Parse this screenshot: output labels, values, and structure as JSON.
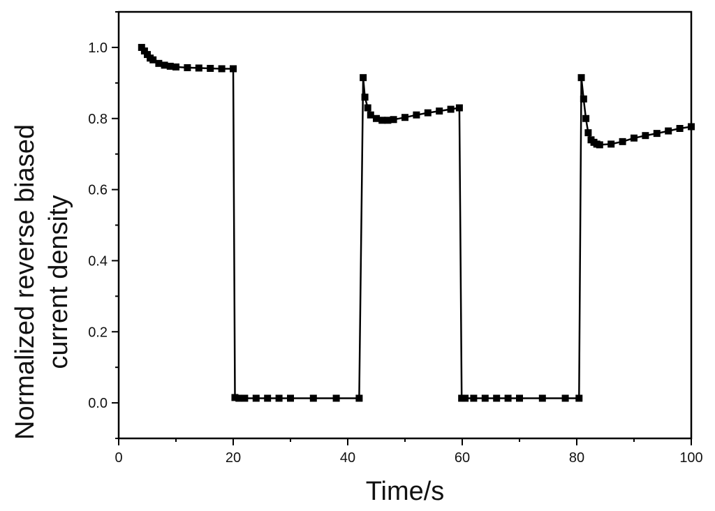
{
  "chart_data": {
    "type": "line",
    "title": "",
    "xlabel": "Time/s",
    "ylabel_lines": [
      "Normalized reverse biased",
      "current density"
    ],
    "xlim": [
      0,
      100
    ],
    "ylim": [
      -0.1,
      1.1
    ],
    "x_ticks": [
      0,
      20,
      40,
      60,
      80,
      100
    ],
    "x_tick_labels": [
      "0",
      "20",
      "40",
      "60",
      "80",
      "100"
    ],
    "y_ticks": [
      0.0,
      0.2,
      0.4,
      0.6,
      0.8,
      1.0
    ],
    "y_tick_labels": [
      "0.0",
      "0.2",
      "0.4",
      "0.6",
      "0.8",
      "1.0"
    ],
    "grid": false,
    "legend": "none",
    "marker": "square",
    "colors": {
      "series": "#000000"
    },
    "series": [
      {
        "x": [
          4.0,
          4.5,
          5.0,
          5.5,
          6.0,
          7.0,
          8.0,
          9.0,
          10.0,
          12.0,
          14.0,
          16.0,
          18.0,
          20.0,
          20.3,
          21.0,
          22.0,
          24.0,
          26.0,
          28.0,
          30.0,
          34.0,
          38.0,
          42.0,
          42.7,
          43.0,
          43.5,
          44.0,
          45.0,
          46.0,
          47.0,
          48.0,
          50.0,
          52.0,
          54.0,
          56.0,
          58.0,
          59.5,
          59.9,
          60.5,
          62.0,
          64.0,
          66.0,
          68.0,
          70.0,
          74.0,
          78.0,
          80.4,
          80.8,
          81.2,
          81.6,
          82.0,
          82.5,
          83.0,
          83.5,
          84.0,
          86.0,
          88.0,
          90.0,
          92.0,
          94.0,
          96.0,
          98.0,
          100.0
        ],
        "y": [
          1.0,
          0.99,
          0.98,
          0.97,
          0.965,
          0.955,
          0.95,
          0.947,
          0.945,
          0.943,
          0.942,
          0.941,
          0.94,
          0.94,
          0.015,
          0.013,
          0.013,
          0.013,
          0.013,
          0.013,
          0.013,
          0.013,
          0.013,
          0.013,
          0.915,
          0.86,
          0.83,
          0.81,
          0.8,
          0.795,
          0.795,
          0.797,
          0.803,
          0.81,
          0.816,
          0.821,
          0.826,
          0.83,
          0.013,
          0.013,
          0.013,
          0.013,
          0.013,
          0.013,
          0.013,
          0.013,
          0.013,
          0.013,
          0.915,
          0.855,
          0.8,
          0.76,
          0.74,
          0.733,
          0.728,
          0.726,
          0.728,
          0.735,
          0.745,
          0.752,
          0.758,
          0.765,
          0.772,
          0.777
        ]
      }
    ]
  }
}
